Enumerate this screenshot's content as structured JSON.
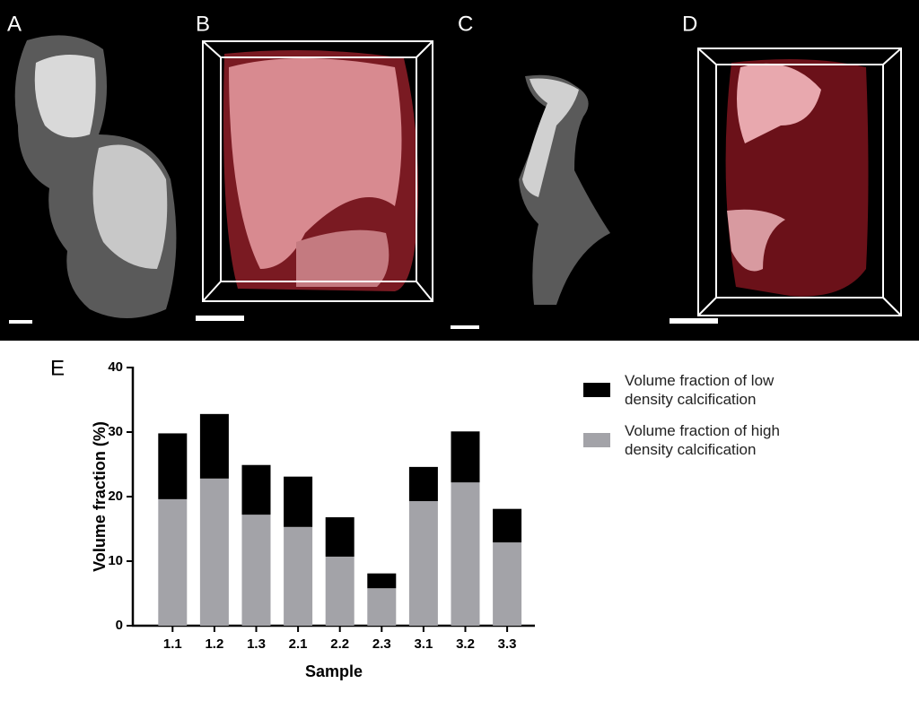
{
  "panel_labels": [
    "A",
    "B",
    "C",
    "D",
    "E"
  ],
  "chart_data": {
    "type": "stacked_bar",
    "y_label": "Volume fraction (%)",
    "x_label": "Sample",
    "categories": [
      "1.1",
      "1.2",
      "1.3",
      "2.1",
      "2.2",
      "2.3",
      "3.1",
      "3.2",
      "3.3"
    ],
    "series": [
      {
        "name": "Volume fraction of high density calcification",
        "color": "#a3a3a8",
        "values": [
          19.6,
          22.8,
          17.2,
          15.3,
          10.7,
          5.8,
          19.3,
          22.2,
          12.9
        ]
      },
      {
        "name": "Volume fraction of low density calcification",
        "color": "#000000",
        "values": [
          10.2,
          10.0,
          7.7,
          7.8,
          6.1,
          2.3,
          5.3,
          7.9,
          5.2
        ]
      }
    ],
    "ylim": [
      0,
      40
    ],
    "yticks": [
      0,
      10,
      20,
      30,
      40
    ],
    "legend": "right"
  }
}
